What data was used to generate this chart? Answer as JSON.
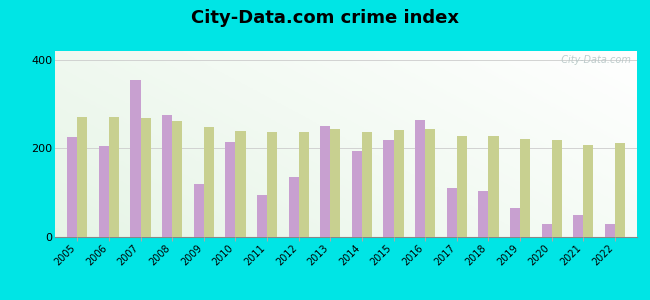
{
  "title": "City-Data.com crime index",
  "years": [
    2005,
    2006,
    2007,
    2008,
    2009,
    2010,
    2011,
    2012,
    2013,
    2014,
    2015,
    2016,
    2017,
    2018,
    2019,
    2020,
    2021,
    2022
  ],
  "trezevant": [
    225,
    205,
    355,
    275,
    120,
    215,
    95,
    135,
    250,
    195,
    218,
    265,
    110,
    105,
    65,
    30,
    50,
    30
  ],
  "us_average": [
    270,
    270,
    268,
    263,
    248,
    240,
    238,
    238,
    243,
    238,
    242,
    243,
    228,
    228,
    222,
    218,
    208,
    213
  ],
  "trezevant_color": "#c8a0d0",
  "us_avg_color": "#c8d090",
  "outer_background": "#00e5e5",
  "ylim": [
    0,
    420
  ],
  "yticks": [
    0,
    200,
    400
  ],
  "bar_width": 0.32,
  "watermark": "  City-Data.com"
}
